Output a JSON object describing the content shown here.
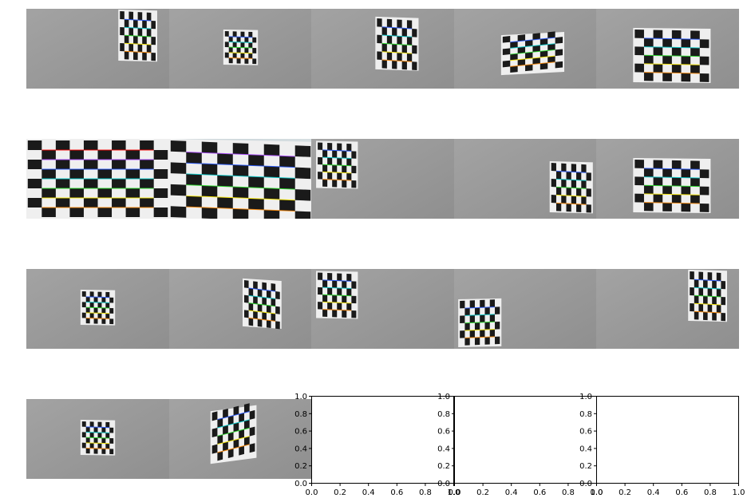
{
  "figure": {
    "background": "#ffffff",
    "grid_rows": 4,
    "grid_cols": 5,
    "photo_panels": [
      {
        "row": 0,
        "col": 0,
        "content": "chessboard-corners-overlay",
        "view": "small-right-edge"
      },
      {
        "row": 0,
        "col": 1,
        "content": "chessboard-corners-overlay",
        "view": "small-centered"
      },
      {
        "row": 0,
        "col": 2,
        "content": "chessboard-corners-overlay",
        "view": "mid-right"
      },
      {
        "row": 0,
        "col": 3,
        "content": "chessboard-corners-overlay",
        "view": "tilted-mid"
      },
      {
        "row": 0,
        "col": 4,
        "content": "chessboard-corners-overlay",
        "view": "centered"
      },
      {
        "row": 1,
        "col": 0,
        "content": "chessboard-corners-overlay",
        "view": "close-up-full"
      },
      {
        "row": 1,
        "col": 1,
        "content": "chessboard-corners-overlay",
        "view": "close-up-full-skewed"
      },
      {
        "row": 1,
        "col": 2,
        "content": "chessboard-corners-overlay",
        "view": "small-left"
      },
      {
        "row": 1,
        "col": 3,
        "content": "chessboard-corners-overlay",
        "view": "small-right"
      },
      {
        "row": 1,
        "col": 4,
        "content": "chessboard-corners-overlay",
        "view": "centered"
      },
      {
        "row": 2,
        "col": 0,
        "content": "chessboard-corners-overlay",
        "view": "small-centered"
      },
      {
        "row": 2,
        "col": 1,
        "content": "chessboard-corners-overlay",
        "view": "rotated-mid"
      },
      {
        "row": 2,
        "col": 2,
        "content": "chessboard-corners-overlay",
        "view": "small-left"
      },
      {
        "row": 2,
        "col": 3,
        "content": "chessboard-corners-overlay",
        "view": "bottom-left"
      },
      {
        "row": 2,
        "col": 4,
        "content": "chessboard-corners-overlay",
        "view": "small-right-edge"
      },
      {
        "row": 3,
        "col": 0,
        "content": "chessboard-corners-overlay",
        "view": "small-centered"
      },
      {
        "row": 3,
        "col": 1,
        "content": "chessboard-corners-overlay",
        "view": "rotated-steep"
      }
    ],
    "overlay_colors": [
      "#ff0000",
      "#ff8800",
      "#ffee00",
      "#22dd22",
      "#00cccc",
      "#2255ff",
      "#aa44ff"
    ],
    "photo_colors": {
      "wall": "#9b9b9b",
      "wall_close": "#d4dde0",
      "board_dark": "#1a1a1a",
      "board_light": "#efefef"
    }
  },
  "chart_data": [
    {
      "type": "empty",
      "row": 3,
      "col": 2,
      "xlim": [
        0.0,
        1.0
      ],
      "ylim": [
        0.0,
        1.0
      ],
      "xticks": [
        "0.0",
        "0.2",
        "0.4",
        "0.6",
        "0.8",
        "1.0"
      ],
      "yticks": [
        "0.0",
        "0.2",
        "0.4",
        "0.6",
        "0.8",
        "1.0"
      ]
    },
    {
      "type": "empty",
      "row": 3,
      "col": 3,
      "xlim": [
        0.0,
        1.0
      ],
      "ylim": [
        0.0,
        1.0
      ],
      "xticks": [
        "0.0",
        "0.2",
        "0.4",
        "0.6",
        "0.8",
        "1.0"
      ],
      "yticks": [
        "0.0",
        "0.2",
        "0.4",
        "0.6",
        "0.8",
        "1.0"
      ]
    },
    {
      "type": "empty",
      "row": 3,
      "col": 4,
      "xlim": [
        0.0,
        1.0
      ],
      "ylim": [
        0.0,
        1.0
      ],
      "xticks": [
        "0.0",
        "0.2",
        "0.4",
        "0.6",
        "0.8",
        "1.0"
      ],
      "yticks": [
        "0.0",
        "0.2",
        "0.4",
        "0.6",
        "0.8",
        "1.0"
      ]
    }
  ]
}
